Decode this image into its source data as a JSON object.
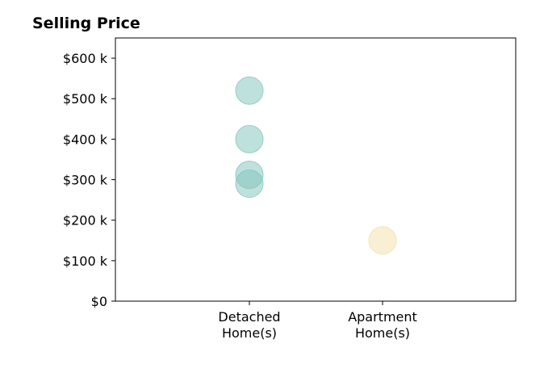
{
  "chart_data": {
    "type": "scatter",
    "title": "Selling Price",
    "xlabel": "",
    "ylabel": "",
    "categories": [
      [
        "Detached",
        "Home(s)"
      ],
      [
        "Apartment",
        "Home(s)"
      ]
    ],
    "ylim": [
      0,
      650000
    ],
    "yticks": [
      0,
      100000,
      200000,
      300000,
      400000,
      500000,
      600000
    ],
    "ytick_labels": [
      "$0",
      "$100 k",
      "$200 k",
      "$300 k",
      "$400 k",
      "$500 k",
      "$600 k"
    ],
    "grid": false,
    "legend": "none",
    "series": [
      {
        "category_index": 0,
        "color": "#7fc4bb",
        "values": [
          520000,
          400000,
          312000,
          290000
        ]
      },
      {
        "category_index": 1,
        "color": "#f3dfa6",
        "values": [
          150000
        ]
      }
    ]
  }
}
